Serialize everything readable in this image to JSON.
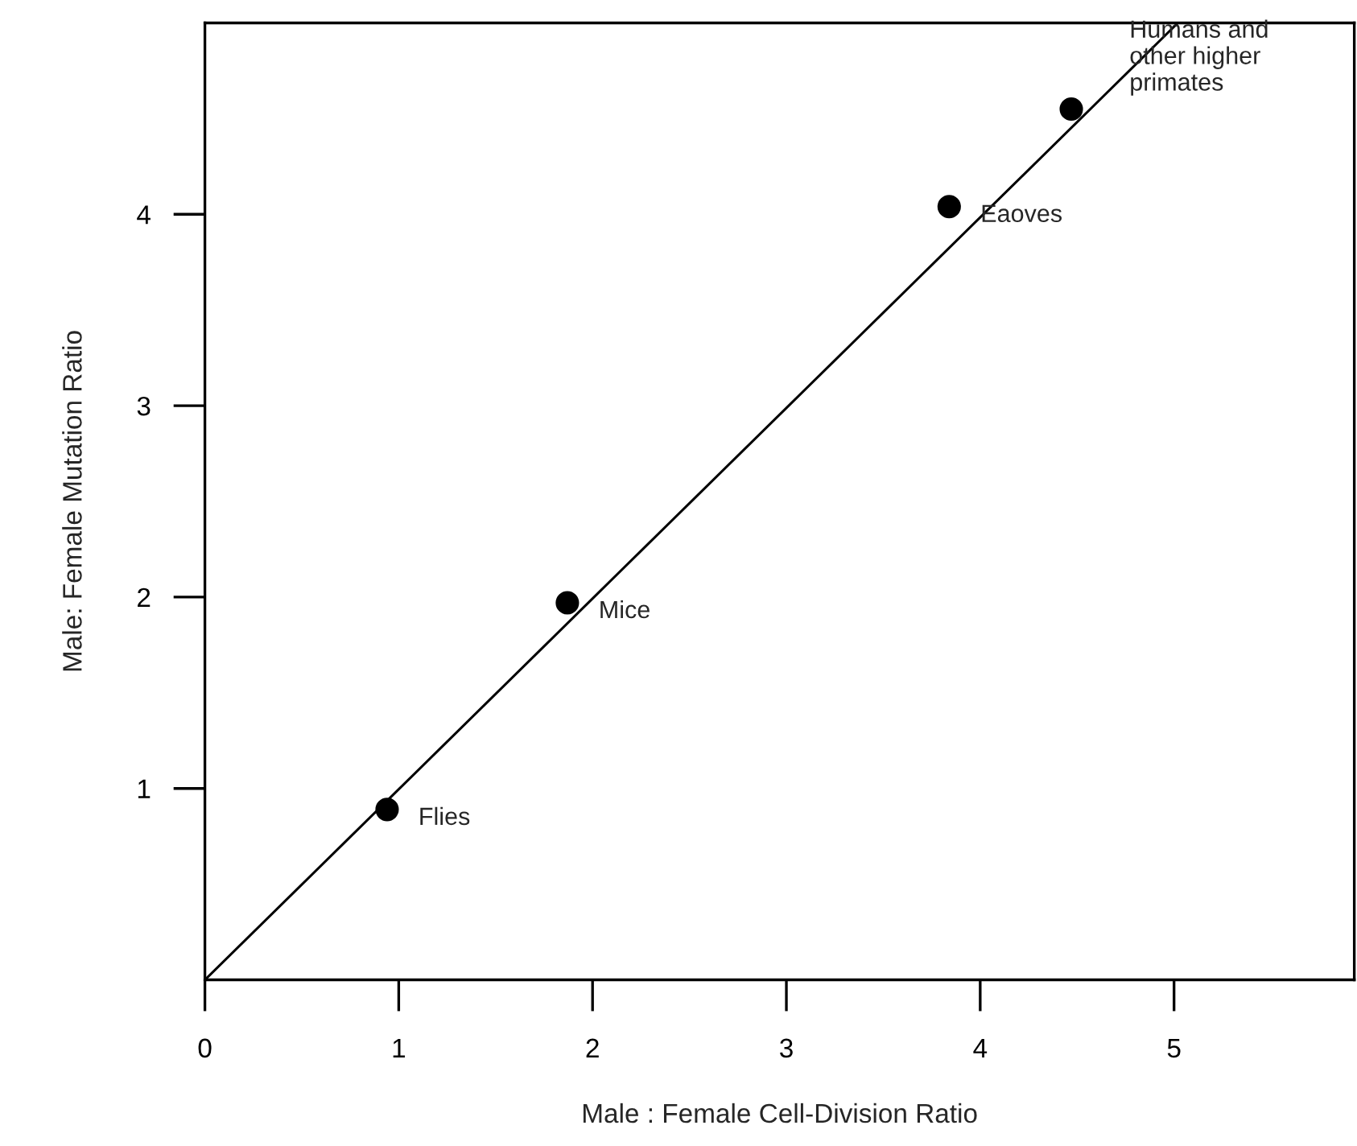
{
  "chart_data": {
    "type": "scatter",
    "xlabel": "Male : Female Cell-Division Ratio",
    "ylabel": "Male: Female Mutation Ratio",
    "xlim": [
      0,
      5.93
    ],
    "ylim": [
      0,
      5
    ],
    "xticks": [
      0,
      1,
      2,
      3,
      4,
      5
    ],
    "yticks": [
      1,
      2,
      3,
      4
    ],
    "grid": false,
    "marker": "circle",
    "series": [
      {
        "color": "#000000",
        "x": [
          0.94,
          1.87,
          3.84,
          4.47
        ],
        "values": [
          0.89,
          1.97,
          4.04,
          4.55
        ]
      },
      {
        "type": "line",
        "color": "#000000",
        "x": [
          0,
          5.02
        ],
        "values": [
          0,
          5
        ],
        "marker": "none",
        "line_style": "solid"
      }
    ],
    "annotations": [
      {
        "text": "Flies",
        "x": 0.94,
        "y": 0.89
      },
      {
        "text": "Mice",
        "x": 1.87,
        "y": 1.97
      },
      {
        "text": "Eaoves",
        "x": 3.84,
        "y": 4.04
      },
      {
        "text": "Humans and\nother higher\nprimates",
        "x": 4.47,
        "y": 4.55
      }
    ]
  }
}
